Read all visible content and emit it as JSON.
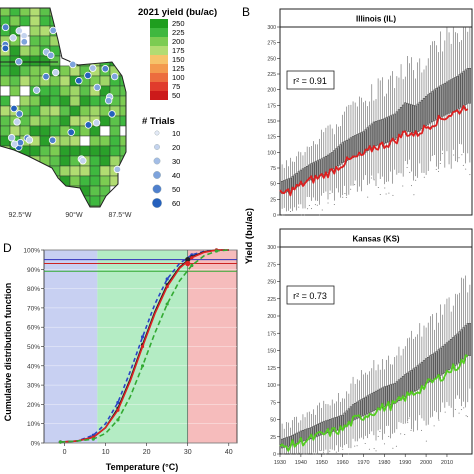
{
  "panels": {
    "B": "B",
    "D": "D"
  },
  "map": {
    "legend_title": "2021 yield (bu/ac)",
    "legend_values": [
      "250",
      "225",
      "200",
      "175",
      "150",
      "125",
      "100",
      "75",
      "50"
    ],
    "legend_colors": [
      "#1f9e1f",
      "#3fb83f",
      "#7ccc52",
      "#b2dc72",
      "#f6c36a",
      "#f39a4e",
      "#ec6d3e",
      "#e03c2c",
      "#cc1a1a"
    ],
    "trials_title": "# Trials",
    "trials_values": [
      "10",
      "20",
      "30",
      "40",
      "50",
      "60"
    ],
    "trials_colors": [
      "#e3e9f6",
      "#c4d3ee",
      "#a3bde6",
      "#7ea3dc",
      "#4f80cd",
      "#2560bd"
    ],
    "lon_labels": [
      "92.5°W",
      "90°W",
      "87.5°W"
    ]
  },
  "chart_data": [
    {
      "type": "line",
      "strip_title": "Illinois (IL)",
      "r2_label": "r² = 0.91",
      "ylabel": "Yield (bu/ac)",
      "ylim": [
        0,
        300
      ],
      "yticks": [
        "0",
        "25",
        "50",
        "75",
        "100",
        "125",
        "150",
        "175",
        "200",
        "225",
        "250",
        "275",
        "300"
      ],
      "xlim": [
        1930,
        2022
      ],
      "series": [
        {
          "color": "#dd2020",
          "x": [
            1930,
            1935,
            1940,
            1945,
            1950,
            1955,
            1960,
            1965,
            1970,
            1975,
            1980,
            1985,
            1990,
            1995,
            2000,
            2005,
            2010,
            2015,
            2020
          ],
          "values": [
            33,
            38,
            48,
            56,
            62,
            70,
            82,
            90,
            96,
            108,
            112,
            118,
            132,
            128,
            140,
            150,
            158,
            165,
            175
          ]
        }
      ]
    },
    {
      "type": "line",
      "strip_title": "Kansas (KS)",
      "r2_label": "r² = 0.73",
      "ylabel": "Yield (bu/ac)",
      "ylim": [
        0,
        300
      ],
      "yticks": [
        "0",
        "25",
        "50",
        "75",
        "100",
        "125",
        "150",
        "175",
        "200",
        "225",
        "250",
        "275",
        "300"
      ],
      "xlim": [
        1930,
        2022
      ],
      "xticks": [
        "1930",
        "1940",
        "1950",
        "1960",
        "1970",
        "1980",
        "1990",
        "2000",
        "2010"
      ],
      "series": [
        {
          "color": "#55cc22",
          "x": [
            1930,
            1935,
            1940,
            1945,
            1950,
            1955,
            1960,
            1965,
            1970,
            1975,
            1980,
            1985,
            1990,
            1995,
            2000,
            2005,
            2010,
            2015,
            2020
          ],
          "values": [
            8,
            12,
            18,
            22,
            28,
            32,
            36,
            48,
            55,
            62,
            68,
            72,
            82,
            90,
            100,
            108,
            118,
            128,
            140
          ]
        }
      ]
    },
    {
      "type": "line",
      "xlabel": "Temperature (°C)",
      "ylabel": "Cumulative distribution function",
      "xlim": [
        -5,
        42
      ],
      "ylim": [
        0,
        100
      ],
      "xticks": [
        "0",
        "10",
        "20",
        "30",
        "40"
      ],
      "yticks": [
        "0%",
        "10%",
        "20%",
        "30%",
        "40%",
        "50%",
        "60%",
        "70%",
        "80%",
        "90%",
        "100%"
      ],
      "shaded_regions": [
        {
          "from": -5,
          "to": 8,
          "color": "#c8d0f2"
        },
        {
          "from": 8,
          "to": 30,
          "color": "#b4ecc4"
        },
        {
          "from": 30,
          "to": 42,
          "color": "#f6bcbc"
        }
      ],
      "reference_lines": [
        {
          "y": 95,
          "color": "#3030bb"
        },
        {
          "y": 93,
          "color": "#cc2222"
        },
        {
          "y": 89,
          "color": "#33aa33"
        }
      ],
      "series": [
        {
          "color": "#2a44c4",
          "dash": "4,3",
          "x": [
            -1,
            3,
            7,
            10,
            13,
            16,
            19,
            22,
            25,
            28,
            31,
            34,
            37,
            40
          ],
          "values": [
            0.5,
            1,
            4,
            10,
            21,
            37,
            55,
            72,
            85,
            93,
            97.5,
            99.3,
            100,
            100
          ]
        },
        {
          "color": "#222222",
          "dash": "",
          "x": [
            -1,
            3,
            7,
            10,
            13,
            16,
            19,
            22,
            25,
            28,
            31,
            34,
            37,
            40
          ],
          "values": [
            0.5,
            1,
            3,
            8,
            18,
            33,
            51,
            68,
            82,
            91,
            96.5,
            99,
            100,
            100
          ]
        },
        {
          "color": "#dd2222",
          "dash": "",
          "x": [
            -1,
            3,
            7,
            10,
            13,
            16,
            19,
            22,
            25,
            28,
            31,
            34,
            37,
            40
          ],
          "values": [
            0.5,
            1,
            3,
            8,
            17,
            32,
            50,
            67,
            81,
            90.5,
            96,
            98.8,
            100,
            100
          ]
        },
        {
          "color": "#33aa33",
          "dash": "5,3",
          "x": [
            -1,
            3,
            7,
            10,
            13,
            16,
            19,
            22,
            25,
            28,
            31,
            34,
            37,
            40
          ],
          "values": [
            0.5,
            1,
            2,
            5,
            12,
            24,
            40,
            57,
            72,
            84,
            92,
            97,
            99.5,
            100
          ]
        }
      ],
      "markers": [
        {
          "x": 30,
          "y": 95,
          "color": "#222222"
        },
        {
          "x": 30,
          "y": 93,
          "color": "#dd2222"
        }
      ]
    }
  ]
}
